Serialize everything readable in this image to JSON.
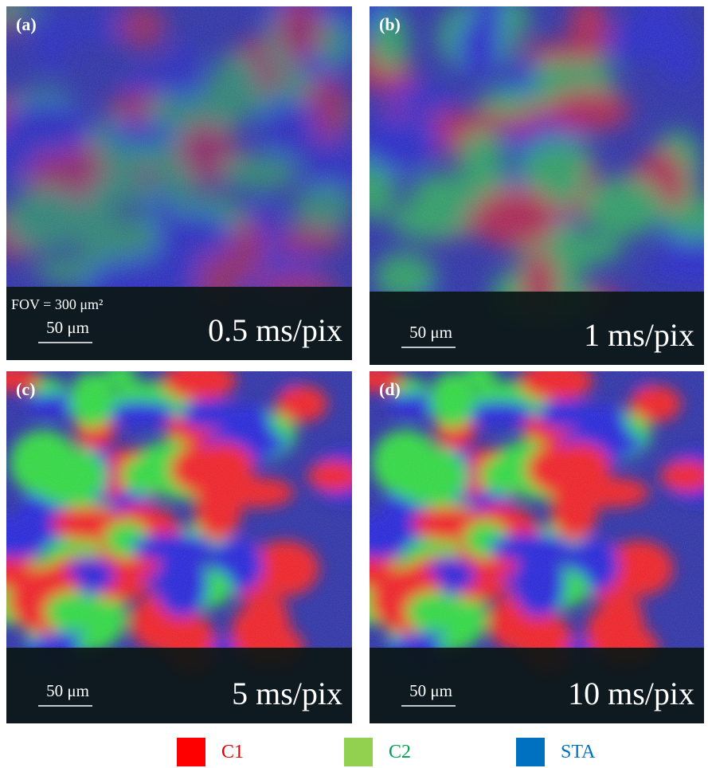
{
  "panels": [
    {
      "label": "(a)",
      "fov": "FOV = 300 μm²",
      "scale_bar": "50 μm",
      "speed": "0.5 ms/pix"
    },
    {
      "label": "(b)",
      "scale_bar": "50 μm",
      "speed": "1 ms/pix"
    },
    {
      "label": "(c)",
      "scale_bar": "50 μm",
      "speed": "5 ms/pix"
    },
    {
      "label": "(d)",
      "scale_bar": "50 μm",
      "speed": "10 ms/pix"
    }
  ],
  "legend": [
    {
      "label": "C1",
      "color": "#ff0000",
      "text_color": "#e00000"
    },
    {
      "label": "C2",
      "color": "#92d050",
      "text_color": "#00a050"
    },
    {
      "label": "STA",
      "color": "#0070c0",
      "text_color": "#0070c0"
    }
  ]
}
